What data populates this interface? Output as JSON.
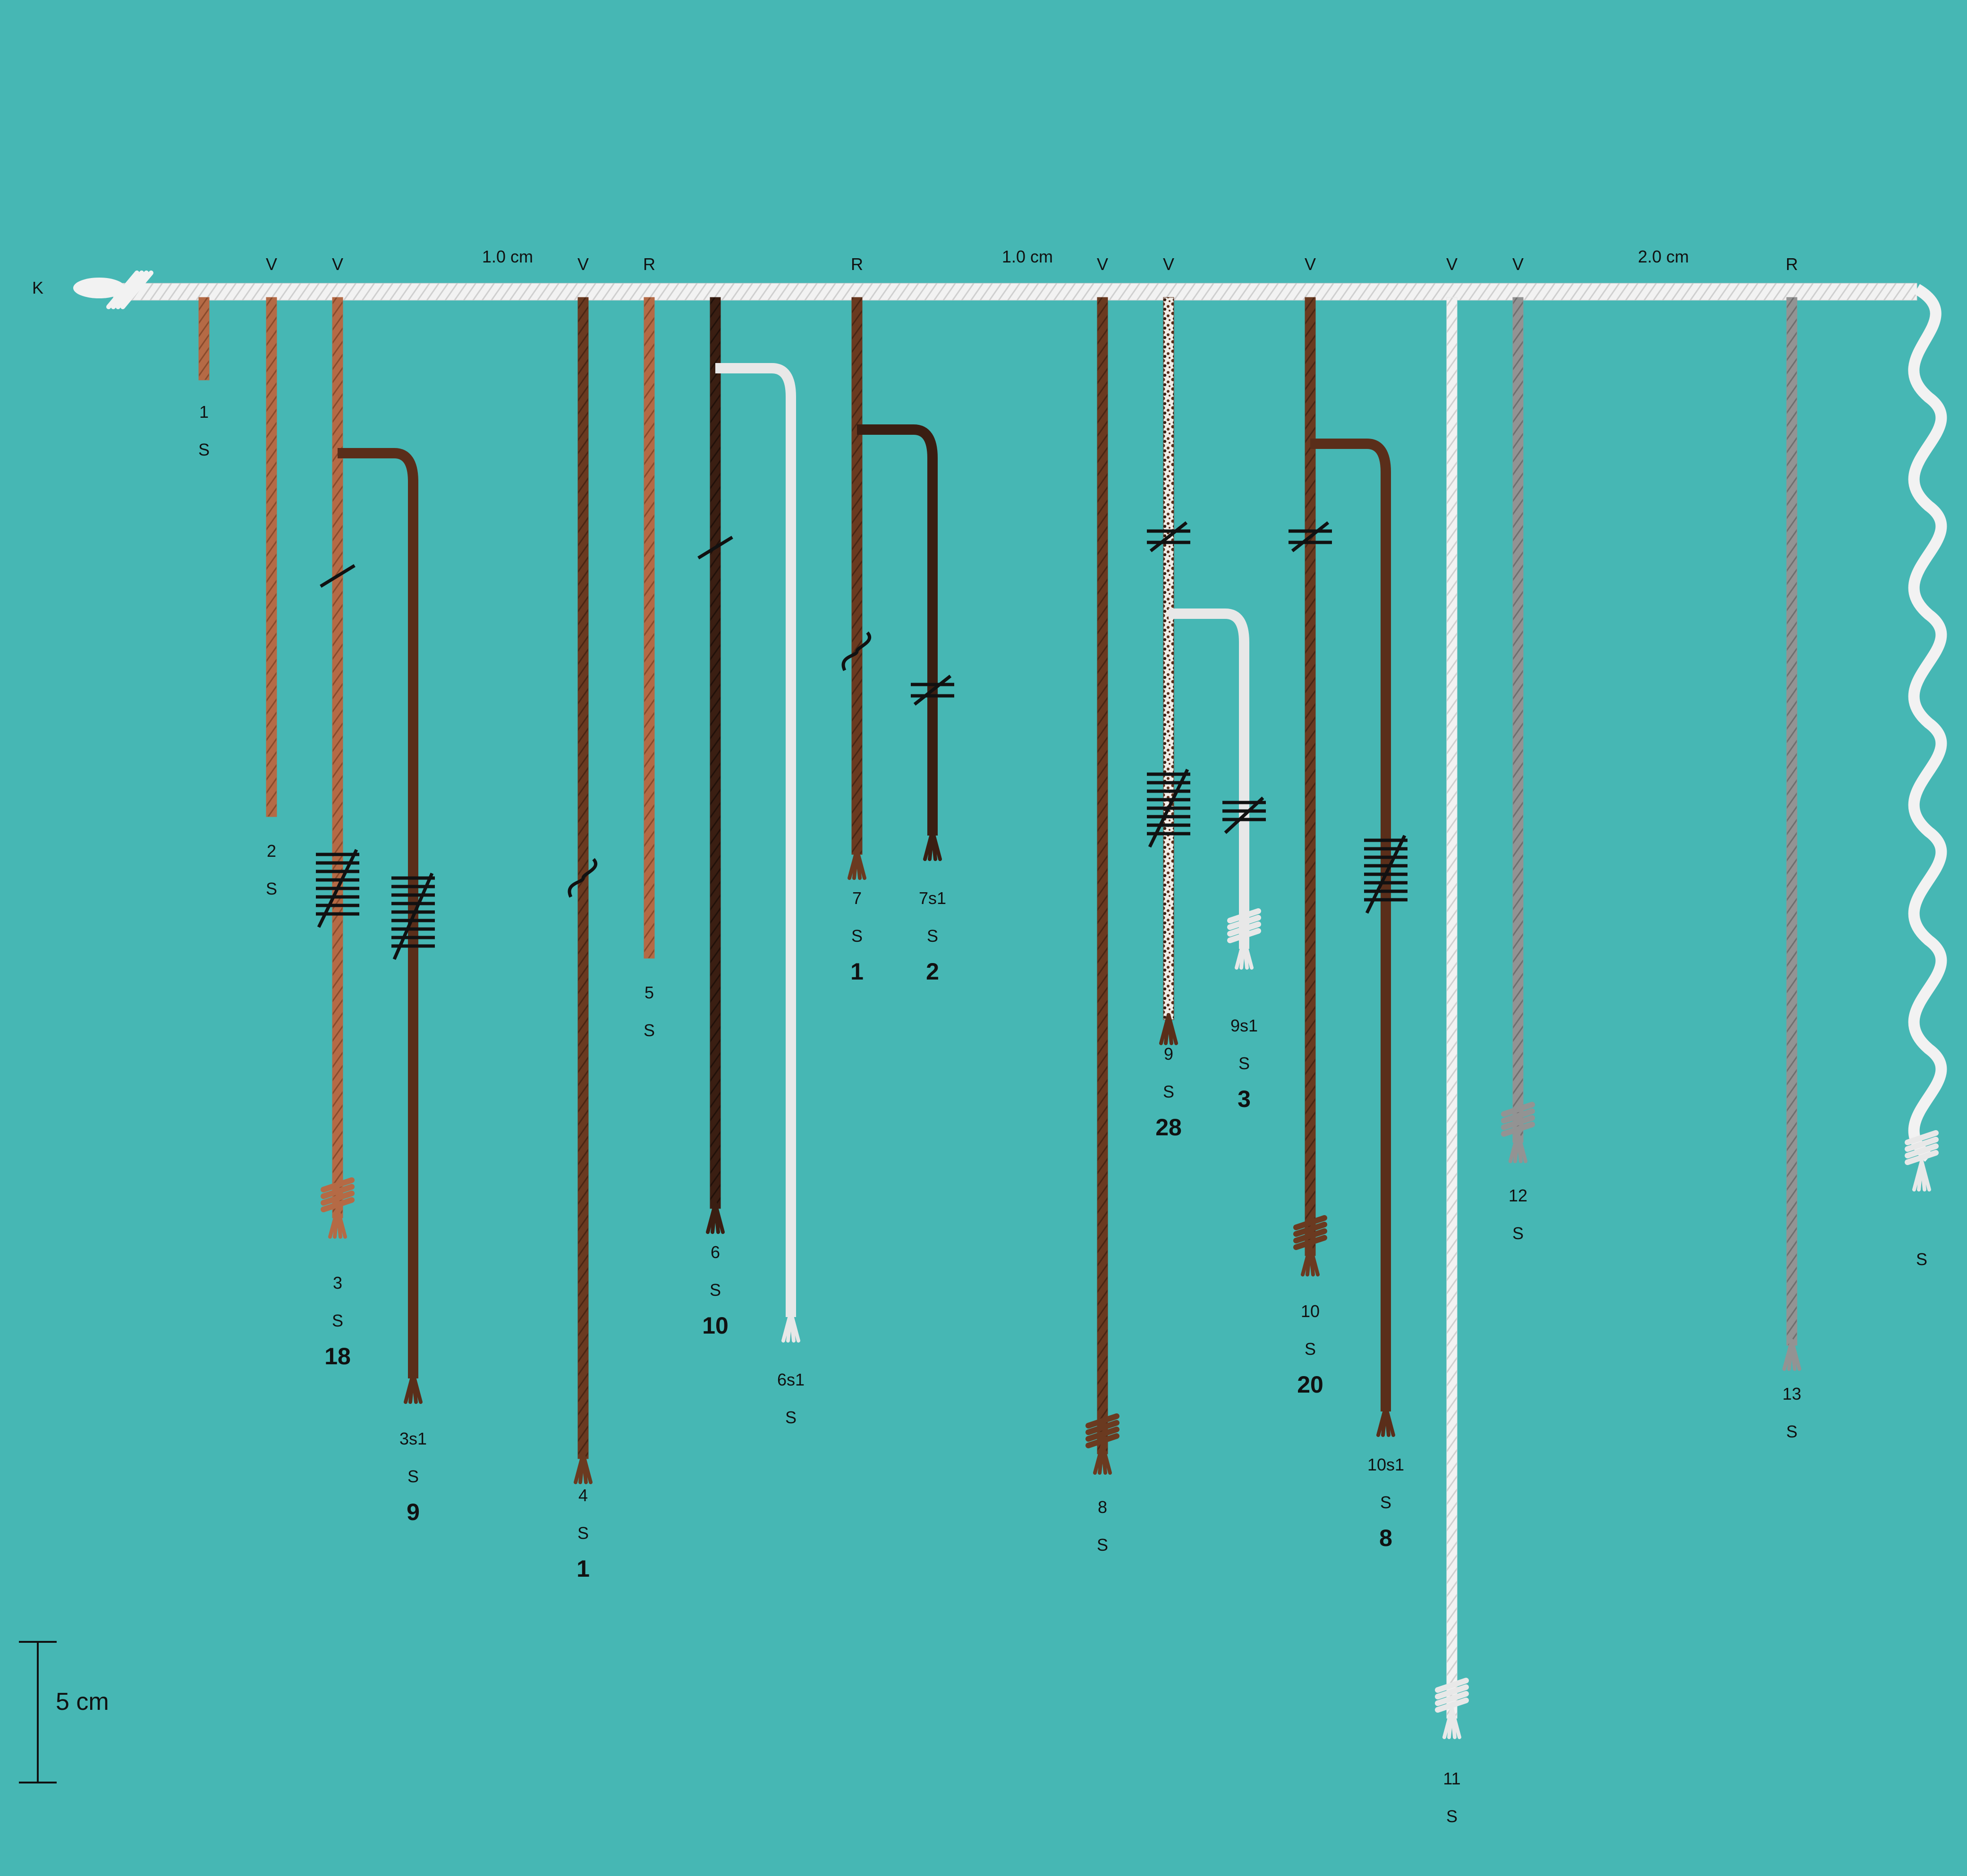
{
  "colors": {
    "background": "#46b7b4",
    "white": "#f2f2f2",
    "tan": "#b56a45",
    "dark_brown": "#6b3a20",
    "very_dark_brown": "#3a1e12",
    "grey": "#939393",
    "black": "#111111"
  },
  "primary_cord": {
    "label": "K",
    "color": "white",
    "end_knot_icon": "tied-end-icon"
  },
  "spacing_marks": [
    "1.0 cm",
    "1.0 cm",
    "2.0 cm"
  ],
  "scale_bar": {
    "label": "5 cm"
  },
  "pendants": [
    {
      "id": "1",
      "attach": "",
      "color": "tan",
      "ply": "S",
      "value": "",
      "knots": []
    },
    {
      "id": "2",
      "attach": "V",
      "color": "tan",
      "ply": "S",
      "value": "",
      "knots": []
    },
    {
      "id": "3",
      "attach": "V",
      "color": "tan",
      "ply": "S",
      "value": "18",
      "knots": [
        "single-knot",
        "long-knot-8"
      ],
      "subsidiaries": [
        {
          "id": "3s1",
          "color": "mottled",
          "ply": "S",
          "value": "9",
          "knots": [
            "long-knot-9"
          ]
        }
      ]
    },
    {
      "id": "4",
      "attach": "V",
      "color": "dark_brown",
      "ply": "S",
      "value": "1",
      "knots": [
        "figure-eight-knot"
      ]
    },
    {
      "id": "5",
      "attach": "R",
      "color": "tan",
      "ply": "S",
      "value": "",
      "knots": []
    },
    {
      "id": "6",
      "attach": "",
      "color": "very_dark_brown",
      "ply": "S",
      "value": "10",
      "knots": [
        "single-knot"
      ],
      "subsidiaries": [
        {
          "id": "6s1",
          "color": "white",
          "ply": "S",
          "value": "",
          "knots": []
        }
      ]
    },
    {
      "id": "7",
      "attach": "R",
      "color": "dark_brown",
      "ply": "S",
      "value": "1",
      "knots": [
        "figure-eight-knot"
      ],
      "subsidiaries": [
        {
          "id": "7s1",
          "color": "very_dark_brown",
          "ply": "S",
          "value": "2",
          "knots": [
            "double-knot"
          ]
        }
      ]
    },
    {
      "id": "8",
      "attach": "V",
      "color": "dark_brown",
      "ply": "S",
      "value": "",
      "knots": []
    },
    {
      "id": "9",
      "attach": "V",
      "color": "mottled",
      "ply": "S",
      "value": "28",
      "knots": [
        "double-knot",
        "long-knot-8"
      ],
      "subsidiaries": [
        {
          "id": "9s1",
          "color": "white",
          "ply": "S",
          "value": "3",
          "knots": [
            "long-knot-3"
          ]
        }
      ]
    },
    {
      "id": "10",
      "attach": "V",
      "color": "dark_brown",
      "ply": "S",
      "value": "20",
      "knots": [
        "double-knot"
      ],
      "subsidiaries": [
        {
          "id": "10s1",
          "color": "mottled",
          "ply": "S",
          "value": "8",
          "knots": [
            "long-knot-8"
          ]
        }
      ]
    },
    {
      "id": "11",
      "attach": "V",
      "color": "white",
      "ply": "S",
      "value": "",
      "knots": []
    },
    {
      "id": "12",
      "attach": "V",
      "color": "grey",
      "ply": "S",
      "value": "",
      "knots": []
    },
    {
      "id": "13",
      "attach": "R",
      "color": "grey",
      "ply": "S",
      "value": "",
      "knots": []
    },
    {
      "id": "",
      "attach": "",
      "color": "white",
      "ply": "S",
      "value": "",
      "knots": []
    }
  ]
}
